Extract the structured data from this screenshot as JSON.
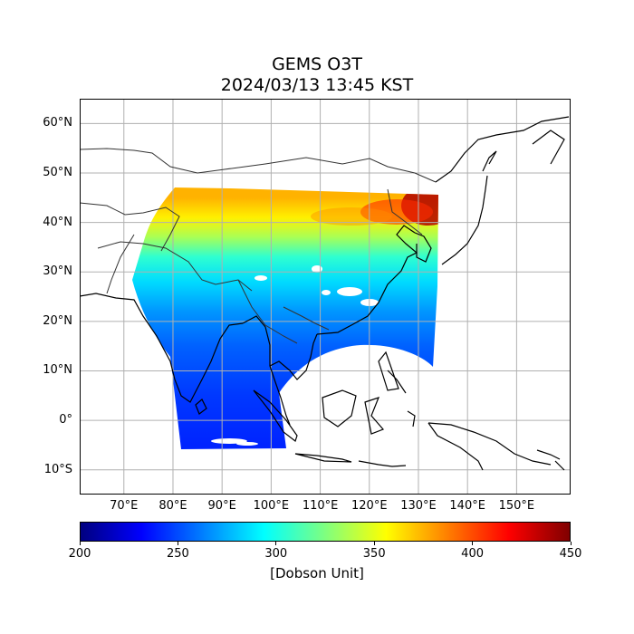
{
  "title": {
    "line1": "GEMS O3T",
    "line2": "2024/03/13 13:45 KST"
  },
  "map": {
    "extent_lon": [
      61,
      161
    ],
    "extent_lat": [
      -15,
      65
    ],
    "grid": true,
    "gridline_color": "#b0b0b0",
    "coastline_color": "#000000",
    "border_color": "#444444",
    "lat_ticks": [
      {
        "value": 60,
        "label": "60°N"
      },
      {
        "value": 50,
        "label": "50°N"
      },
      {
        "value": 40,
        "label": "40°N"
      },
      {
        "value": 30,
        "label": "30°N"
      },
      {
        "value": 20,
        "label": "20°N"
      },
      {
        "value": 10,
        "label": "10°N"
      },
      {
        "value": 0,
        "label": "0°"
      },
      {
        "value": -10,
        "label": "10°S"
      }
    ],
    "lon_ticks": [
      {
        "value": 70,
        "label": "70°E"
      },
      {
        "value": 80,
        "label": "80°E"
      },
      {
        "value": 90,
        "label": "90°E"
      },
      {
        "value": 100,
        "label": "100°E"
      },
      {
        "value": 110,
        "label": "110°E"
      },
      {
        "value": 120,
        "label": "120°E"
      },
      {
        "value": 130,
        "label": "130°E"
      },
      {
        "value": 140,
        "label": "140°E"
      },
      {
        "value": 150,
        "label": "150°E"
      }
    ]
  },
  "colorbar": {
    "colormap": "jet",
    "min": 200,
    "max": 450,
    "ticks": [
      {
        "value": 200,
        "label": "200"
      },
      {
        "value": 250,
        "label": "250"
      },
      {
        "value": 300,
        "label": "300"
      },
      {
        "value": 350,
        "label": "350"
      },
      {
        "value": 400,
        "label": "400"
      },
      {
        "value": 450,
        "label": "450"
      }
    ],
    "label": "[Dobson Unit]",
    "colors": [
      "#00007f",
      "#0000ff",
      "#007fff",
      "#00ffff",
      "#7fff7f",
      "#ffff00",
      "#ff7f00",
      "#ff0000",
      "#7f0000"
    ]
  },
  "ozone_field": {
    "description_values_by_latitude_DU": [
      {
        "lat": -5,
        "value": 240
      },
      {
        "lat": 5,
        "value": 245
      },
      {
        "lat": 15,
        "value": 255
      },
      {
        "lat": 22,
        "value": 268
      },
      {
        "lat": 28,
        "value": 285
      },
      {
        "lat": 33,
        "value": 305
      },
      {
        "lat": 37,
        "value": 335
      },
      {
        "lat": 41,
        "value": 360
      },
      {
        "lat": 45,
        "value": 375
      }
    ]
  }
}
